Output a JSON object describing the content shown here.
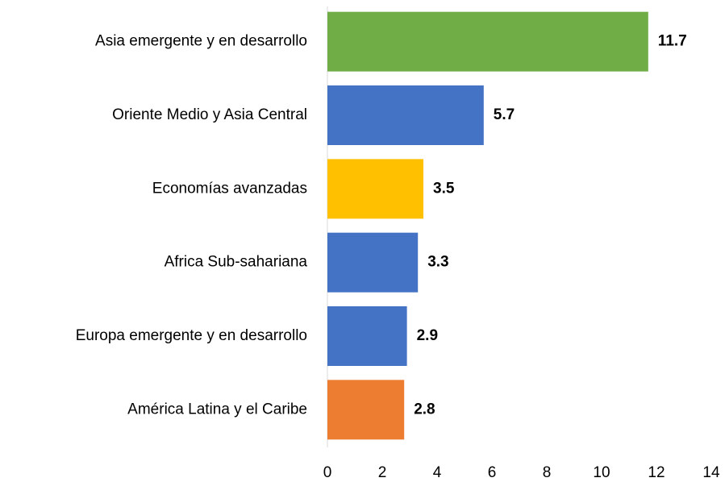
{
  "chart_data": {
    "type": "bar",
    "orientation": "horizontal",
    "categories": [
      "Asia emergente y en desarrollo",
      "Oriente Medio y Asia Central",
      "Economías avanzadas",
      "Africa Sub-sahariana",
      "Europa emergente y en desarrollo",
      "América Latina y el Caribe"
    ],
    "values": [
      11.7,
      5.7,
      3.5,
      3.3,
      2.9,
      2.8
    ],
    "colors": [
      "#70ad47",
      "#4472c4",
      "#ffc000",
      "#4472c4",
      "#4472c4",
      "#ed7d31"
    ],
    "xlim": [
      0,
      14
    ],
    "xticks": [
      0,
      2,
      4,
      6,
      8,
      10,
      12,
      14
    ],
    "grid": false
  }
}
